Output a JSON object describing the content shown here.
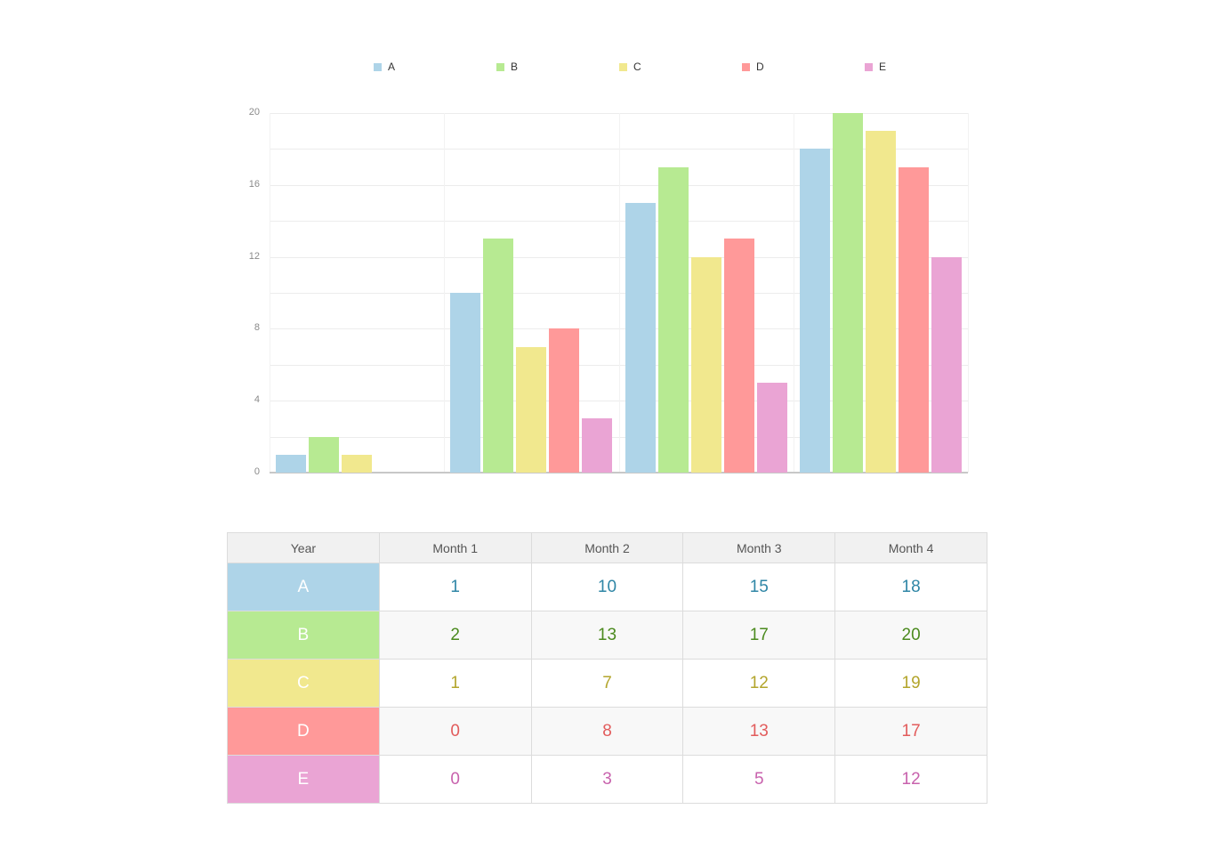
{
  "legend": [
    {
      "label": "A",
      "color": "#aed4e8"
    },
    {
      "label": "B",
      "color": "#b7ea92"
    },
    {
      "label": "C",
      "color": "#f1e88e"
    },
    {
      "label": "D",
      "color": "#ff9999"
    },
    {
      "label": "E",
      "color": "#eaa4d4"
    }
  ],
  "y_axis": {
    "ticks": [
      "20",
      "16",
      "12",
      "8",
      "4",
      "0"
    ]
  },
  "table": {
    "header": [
      "Year",
      "Month 1",
      "Month 2",
      "Month 3",
      "Month 4"
    ],
    "rows": [
      {
        "label": "A",
        "bg": "#aed4e8",
        "text_color": "#2f86a6",
        "values": [
          "1",
          "10",
          "15",
          "18"
        ]
      },
      {
        "label": "B",
        "bg": "#b7ea92",
        "text_color": "#4b8a1e",
        "values": [
          "2",
          "13",
          "17",
          "20"
        ]
      },
      {
        "label": "C",
        "bg": "#f1e88e",
        "text_color": "#b3a52c",
        "values": [
          "1",
          "7",
          "12",
          "19"
        ]
      },
      {
        "label": "D",
        "bg": "#ff9999",
        "text_color": "#e25c5c",
        "values": [
          "0",
          "8",
          "13",
          "17"
        ]
      },
      {
        "label": "E",
        "bg": "#eaa4d4",
        "text_color": "#c862ad",
        "values": [
          "0",
          "3",
          "5",
          "12"
        ]
      }
    ]
  },
  "chart_data": {
    "type": "bar",
    "title": "",
    "xlabel": "",
    "ylabel": "",
    "categories": [
      "Month 1",
      "Month 2",
      "Month 3",
      "Month 4"
    ],
    "series": [
      {
        "name": "A",
        "color": "#aed4e8",
        "values": [
          1,
          10,
          15,
          18
        ]
      },
      {
        "name": "B",
        "color": "#b7ea92",
        "values": [
          2,
          13,
          17,
          20
        ]
      },
      {
        "name": "C",
        "color": "#f1e88e",
        "values": [
          1,
          7,
          12,
          19
        ]
      },
      {
        "name": "D",
        "color": "#ff9999",
        "values": [
          0,
          8,
          13,
          17
        ]
      },
      {
        "name": "E",
        "color": "#eaa4d4",
        "values": [
          0,
          3,
          5,
          12
        ]
      }
    ],
    "ylim": [
      0,
      20
    ],
    "yticks": [
      0,
      4,
      8,
      12,
      16,
      20
    ],
    "grid": true,
    "legend_position": "top"
  }
}
